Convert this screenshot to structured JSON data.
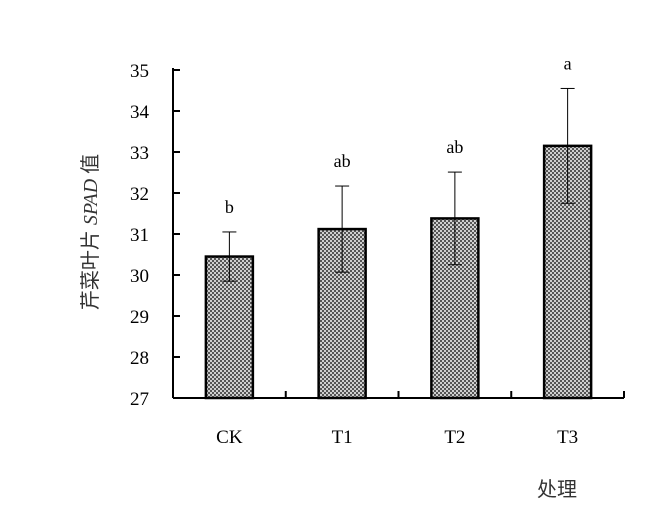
{
  "chart_data": {
    "type": "bar",
    "categories": [
      "CK",
      "T1",
      "T2",
      "T3"
    ],
    "values": [
      30.45,
      31.12,
      31.38,
      33.15
    ],
    "error": [
      0.6,
      1.05,
      1.13,
      1.4
    ],
    "significance": [
      "b",
      "ab",
      "ab",
      "a"
    ],
    "ylim": [
      27,
      35
    ],
    "yticks": [
      "27",
      "28",
      "29",
      "30",
      "31",
      "32",
      "33",
      "34",
      "35"
    ],
    "xlabel": "处理",
    "ylabel": "芹菜叶片 SPAD 值",
    "ylabel_prefix": "芹菜叶片",
    "ylabel_italic": "SPAD",
    "ylabel_suffix": "值",
    "bar_fill": "#8c8c8c",
    "legend": "none",
    "grid": false
  }
}
